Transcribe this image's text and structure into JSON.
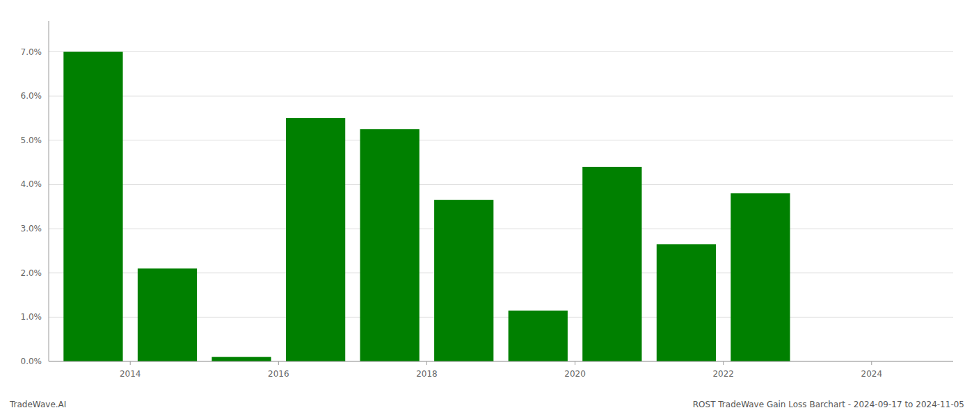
{
  "chart_data": {
    "type": "bar",
    "x": [
      2013,
      2014,
      2015,
      2016,
      2017,
      2018,
      2019,
      2020,
      2021,
      2022,
      2023
    ],
    "values": [
      0.07,
      0.021,
      0.001,
      0.055,
      0.0525,
      0.0365,
      0.0115,
      0.044,
      0.0265,
      0.038,
      0.0
    ],
    "color": "#008000",
    "xlim": [
      2012.4,
      2024.6
    ],
    "xticks": [
      {
        "value": 2013.5,
        "label": "2014"
      },
      {
        "value": 2015.5,
        "label": "2016"
      },
      {
        "value": 2017.5,
        "label": "2018"
      },
      {
        "value": 2019.5,
        "label": "2020"
      },
      {
        "value": 2021.5,
        "label": "2022"
      },
      {
        "value": 2023.5,
        "label": "2024"
      }
    ],
    "ylim": [
      0.0,
      0.077
    ],
    "yticks": [
      {
        "value": 0.0,
        "label": "0.0%"
      },
      {
        "value": 0.01,
        "label": "1.0%"
      },
      {
        "value": 0.02,
        "label": "2.0%"
      },
      {
        "value": 0.03,
        "label": "3.0%"
      },
      {
        "value": 0.04,
        "label": "4.0%"
      },
      {
        "value": 0.05,
        "label": "5.0%"
      },
      {
        "value": 0.06,
        "label": "6.0%"
      },
      {
        "value": 0.07,
        "label": "7.0%"
      }
    ],
    "grid": true,
    "annotations": [
      "TradeWave.AI",
      "ROST TradeWave Gain Loss Barchart - 2024-09-17 to 2024-11-05"
    ]
  }
}
